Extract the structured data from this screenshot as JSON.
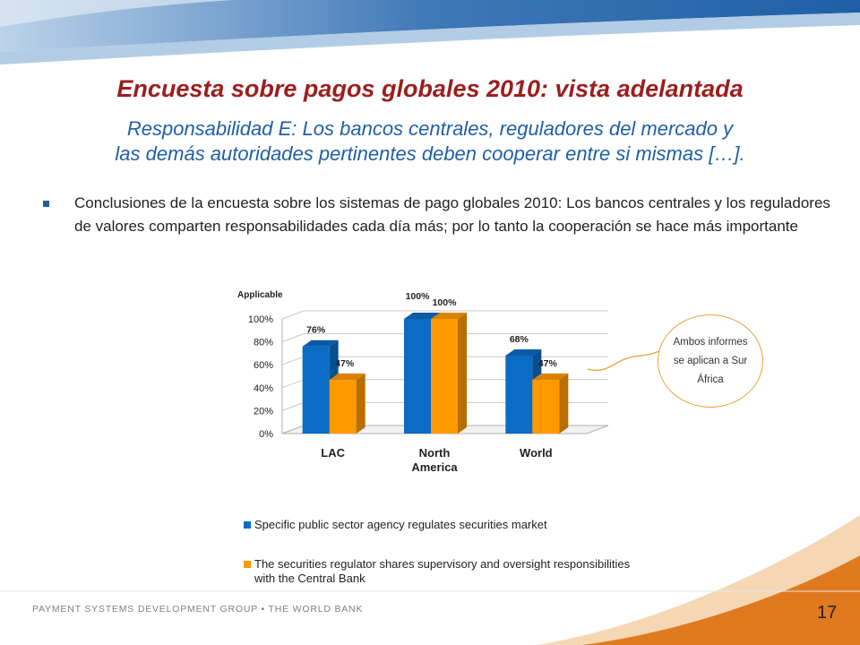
{
  "slide": {
    "title": "Encuesta sobre pagos globales 2010: vista adelantada",
    "subtitle_line1": "Responsabilidad E: Los bancos centrales, reguladores del mercado y",
    "subtitle_line2": "las demás autoridades pertinentes deben cooperar entre si mismas […].",
    "bullet": "Conclusiones de la encuesta sobre los sistemas de pago globales 2010: Los bancos centrales y los reguladores de valores comparten responsabilidades cada día más; por lo tanto la cooperación se hace más importante",
    "callout": "Ambos informes se aplican a Sur África",
    "footer": "PAYMENT SYSTEMS DEVELOPMENT GROUP • THE WORLD BANK",
    "page_number": "17"
  },
  "colors": {
    "title": "#9b1e1e",
    "subtitle": "#1f5fa6",
    "series1": "#0a6cc4",
    "series2": "#ff9900",
    "header_blue": "#1f5fa6",
    "footer_orange": "#e07a1f"
  },
  "chart_data": {
    "type": "bar",
    "title": "Applicable",
    "categories": [
      "LAC",
      "North America",
      "World"
    ],
    "series": [
      {
        "name": "Specific public sector agency regulates securities market",
        "values": [
          76,
          100,
          68
        ],
        "labels": [
          "76%",
          "100%",
          "68%"
        ]
      },
      {
        "name": "The securities regulator shares supervisory and oversight responsibilities with the Central Bank",
        "values": [
          47,
          100,
          47
        ],
        "labels": [
          "47%",
          "100%",
          "47%"
        ]
      }
    ],
    "yticks": [
      "0%",
      "20%",
      "40%",
      "60%",
      "80%",
      "100%"
    ],
    "ylim": [
      0,
      100
    ],
    "grid": true,
    "legend": "bottom",
    "bar_style": "3d"
  }
}
